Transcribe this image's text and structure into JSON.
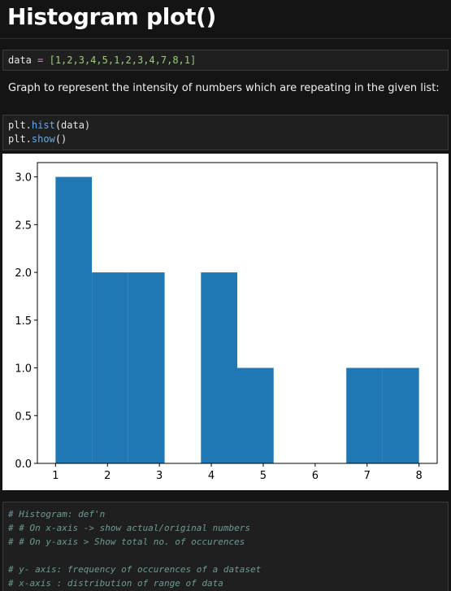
{
  "page": {
    "title": "Histogram plot()",
    "description": "Graph to represent the intensity of numbers which are repeating in the given list:"
  },
  "cell1": {
    "var": "data",
    "op": "=",
    "value": "[1,2,3,4,5,1,2,3,4,7,8,1]"
  },
  "cell2": {
    "line1": {
      "obj": "plt.",
      "fn": "hist",
      "args": "(data)"
    },
    "line2": {
      "obj": "plt.",
      "fn": "show",
      "args": "()"
    }
  },
  "chart_data": {
    "type": "bar",
    "bins": [
      [
        1.0,
        1.7
      ],
      [
        1.7,
        2.4
      ],
      [
        2.4,
        3.1
      ],
      [
        3.1,
        3.8
      ],
      [
        3.8,
        4.5
      ],
      [
        4.5,
        5.2
      ],
      [
        5.2,
        5.9
      ],
      [
        5.9,
        6.6
      ],
      [
        6.6,
        7.3
      ],
      [
        7.3,
        8.0
      ]
    ],
    "values": [
      3,
      2,
      2,
      0,
      2,
      1,
      0,
      0,
      1,
      1
    ],
    "xlim": [
      0.65,
      8.35
    ],
    "ylim": [
      0,
      3.15
    ],
    "xticks": [
      "1",
      "2",
      "3",
      "4",
      "5",
      "6",
      "7",
      "8"
    ],
    "yticks": [
      "0.0",
      "0.5",
      "1.0",
      "1.5",
      "2.0",
      "2.5",
      "3.0"
    ],
    "bar_color": "#1f77b4",
    "grid": false
  },
  "comments": [
    "# Histogram: def'n",
    "# # On x-axis -> show actual/original numbers",
    "# # On y-axis > Show total no. of occurences",
    "",
    "# y- axis: frequency of occurences of a dataset",
    "# x-axis : distribution of range of data"
  ]
}
